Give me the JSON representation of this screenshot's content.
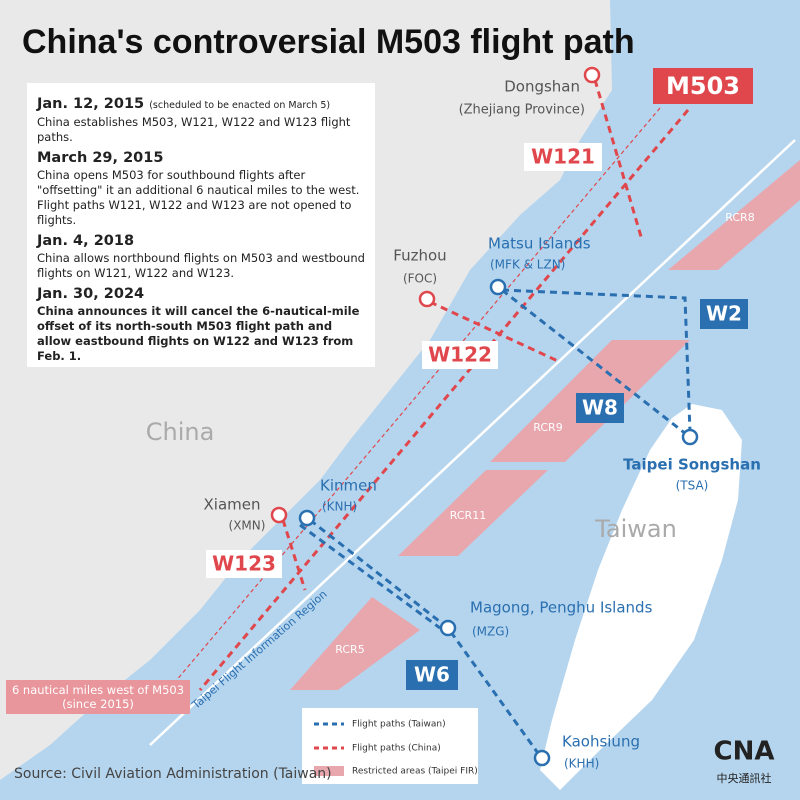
{
  "title": "China's controversial M503 flight path",
  "timeline": [
    {
      "date": "Jan. 12, 2015",
      "note": "(scheduled to be enacted on March 5)",
      "text": "China establishes M503, W121, W122 and W123 flight paths."
    },
    {
      "date": "March 29, 2015",
      "text": "China opens M503 for southbound flights after \"offsetting\" it an additional 6 nautical miles to the west. Flight paths W121, W122 and W123 are not opened to flights."
    },
    {
      "date": "Jan. 4, 2018",
      "text": "China allows northbound flights on M503 and westbound flights on W121, W122 and W123."
    },
    {
      "date": "Jan. 30, 2024",
      "text": "China announces it will cancel the 6-nautical-mile offset of its north-south M503 flight path and allow eastbound flights on W122 and W123 from Feb. 1."
    }
  ],
  "regions": {
    "china": "China",
    "taiwan": "Taiwan"
  },
  "airports": {
    "dongshan": {
      "name": "Dongshan",
      "sub": "(Zhejiang Province)"
    },
    "fuzhou": {
      "name": "Fuzhou",
      "sub": "(FOC)"
    },
    "xiamen": {
      "name": "Xiamen",
      "sub": "(XMN)"
    },
    "matsu": {
      "name": "Matsu Islands",
      "sub": "(MFK & LZN)"
    },
    "kinmen": {
      "name": "Kinmen",
      "sub": "(KNH)"
    },
    "songshan": {
      "name": "Taipei Songshan",
      "sub": "(TSA)"
    },
    "magong": {
      "name": "Magong, Penghu Islands",
      "sub": "(MZG)"
    },
    "kaohsiung": {
      "name": "Kaohsiung",
      "sub": "(KHH)"
    }
  },
  "routes": {
    "m503": "M503",
    "w121": "W121",
    "w122": "W122",
    "w123": "W123",
    "w2": "W2",
    "w8": "W8",
    "w6": "W6"
  },
  "restricted": {
    "rcr8": "RCR8",
    "rcr9": "RCR9",
    "rcr11": "RCR11",
    "rcr5": "RCR5"
  },
  "fir_label": "Taipei Flight Information Region",
  "offset_note": "6 nautical miles west of M503 (since 2015)",
  "legend": {
    "taiwan": "Flight paths (Taiwan)",
    "china": "Flight paths (China)",
    "restricted": "Restricted areas (Taipei FIR)"
  },
  "source": "Source: Civil Aviation Administration (Taiwan)",
  "logo": {
    "mark": "CNA",
    "name": "中央通訊社"
  }
}
